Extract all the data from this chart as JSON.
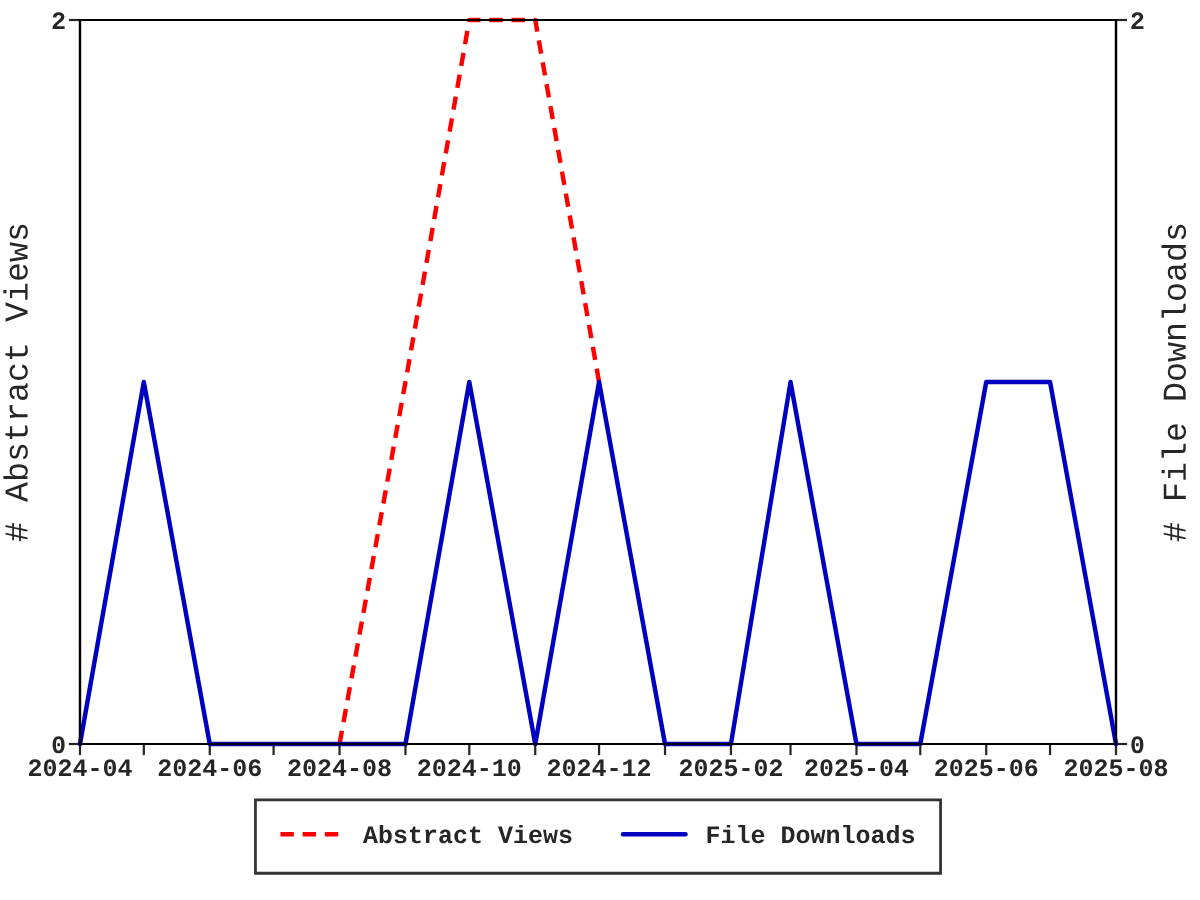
{
  "chart_data": {
    "type": "line",
    "xlabel": null,
    "ylabel": "# Abstract Views",
    "y2label": "# File Downloads",
    "x": [
      "2024-04",
      "2024-05",
      "2024-06",
      "2024-07",
      "2024-08",
      "2024-09",
      "2024-10",
      "2024-11",
      "2024-12",
      "2025-01",
      "2025-02",
      "2025-03",
      "2025-04",
      "2025-05",
      "2025-06",
      "2025-07",
      "2025-08"
    ],
    "series": [
      {
        "name": "Abstract Views",
        "color": "#ff0000",
        "line_style": "dashed",
        "values": [
          null,
          null,
          null,
          null,
          0,
          1,
          2,
          2,
          1,
          null,
          null,
          null,
          null,
          null,
          null,
          null,
          null
        ]
      },
      {
        "name": "File Downloads",
        "color": "#0000c0",
        "line_style": "solid",
        "axis": "y2",
        "values": [
          0,
          1,
          0,
          0,
          0,
          0,
          1,
          0,
          1,
          0,
          0,
          1,
          0,
          0,
          1,
          1,
          0
        ]
      }
    ],
    "xlim": [
      "2024-04",
      "2025-08"
    ],
    "xticks": [
      {
        "value": "2024-04",
        "label": "2024-04"
      },
      {
        "value": "2024-05",
        "label": null
      },
      {
        "value": "2024-06",
        "label": "2024-06"
      },
      {
        "value": "2024-07",
        "label": null
      },
      {
        "value": "2024-08",
        "label": "2024-08"
      },
      {
        "value": "2024-09",
        "label": null
      },
      {
        "value": "2024-10",
        "label": "2024-10"
      },
      {
        "value": "2024-11",
        "label": null
      },
      {
        "value": "2024-12",
        "label": "2024-12"
      },
      {
        "value": "2025-01",
        "label": null
      },
      {
        "value": "2025-02",
        "label": "2025-02"
      },
      {
        "value": "2025-03",
        "label": null
      },
      {
        "value": "2025-04",
        "label": "2025-04"
      },
      {
        "value": "2025-05",
        "label": null
      },
      {
        "value": "2025-06",
        "label": "2025-06"
      },
      {
        "value": "2025-07",
        "label": null
      },
      {
        "value": "2025-08",
        "label": "2025-08"
      }
    ],
    "ylim": [
      0,
      2
    ],
    "yticks": [
      0,
      2
    ],
    "y2lim": [
      0,
      2
    ],
    "y2ticks": [
      0,
      2
    ],
    "grid": false,
    "legend": "bottom",
    "marker": "none"
  }
}
